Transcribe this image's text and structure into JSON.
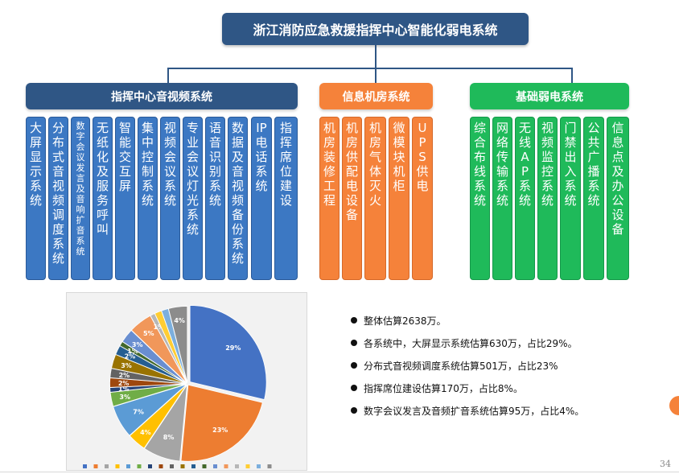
{
  "title": "浙江消防应急救援指挥中心智能化弱电系统",
  "categories": [
    {
      "name": "指挥中心音视频系统",
      "color": "#2f5685",
      "items": [
        "大屏显示系统",
        "分布式音视频调度系统",
        "数字会议发言及音响扩音系统",
        "无纸化及服务呼叫",
        "智能交互屏",
        "集中控制系统",
        "视频会议系统",
        "专业会议灯光系统",
        "语音识别系统",
        "数据及音视频备份系统",
        "IP电话系统",
        "指挥席位建设"
      ]
    },
    {
      "name": "信息机房系统",
      "color": "#f5823a",
      "items": [
        "机房装修工程",
        "机房供配电设备",
        "机房气体灭火",
        "微模块机柜",
        "UPS供电"
      ]
    },
    {
      "name": "基础弱电系统",
      "color": "#1fba5a",
      "items": [
        "综合布线系统",
        "网络传输系统",
        "无线AP系统",
        "视频监控系统",
        "门禁出入系统",
        "公共广播系统",
        "信息点及办公设备"
      ]
    }
  ],
  "chart_data": {
    "type": "pie",
    "slices": [
      {
        "label": "29%",
        "value": 29,
        "color": "#4472c4"
      },
      {
        "label": "23%",
        "value": 23,
        "color": "#ed7d31"
      },
      {
        "label": "8%",
        "value": 8,
        "color": "#a5a5a5"
      },
      {
        "label": "4%",
        "value": 4,
        "color": "#ffc000"
      },
      {
        "label": "7%",
        "value": 7,
        "color": "#5b9bd5"
      },
      {
        "label": "3%",
        "value": 3,
        "color": "#70ad47"
      },
      {
        "label": "1%",
        "value": 1,
        "color": "#264478"
      },
      {
        "label": "2%",
        "value": 2,
        "color": "#9e480e"
      },
      {
        "label": "2%",
        "value": 2,
        "color": "#636363"
      },
      {
        "label": "3%",
        "value": 3,
        "color": "#997300"
      },
      {
        "label": "2%",
        "value": 2,
        "color": "#255e91"
      },
      {
        "label": "1%",
        "value": 1,
        "color": "#43682b"
      },
      {
        "label": "3%",
        "value": 3,
        "color": "#698ed0"
      },
      {
        "label": "5%",
        "value": 5,
        "color": "#f1975a"
      },
      {
        "label": "1%",
        "value": 1,
        "color": "#b7b7b7"
      },
      {
        "label": "",
        "value": 1.5,
        "color": "#ffcd33"
      },
      {
        "label": "",
        "value": 1.5,
        "color": "#7cafdd"
      },
      {
        "label": "4%",
        "value": 4,
        "color": "#8c8c8c"
      }
    ]
  },
  "bullets": [
    "整体估算2638万。",
    "各系统中，大屏显示系统估算630万，占比29%。",
    "分布式音视频调度系统估算501万，占比23%",
    "指挥席位建设估算170万，占比8%。",
    "数字会议发言及音频扩音系统估算95万，占比4%。"
  ],
  "page_number": "34"
}
